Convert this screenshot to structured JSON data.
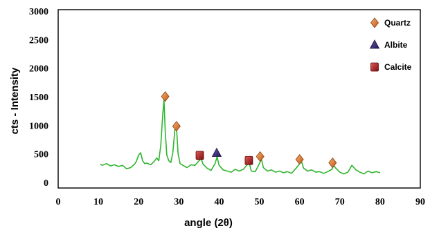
{
  "chart_data": {
    "type": "line",
    "xlabel": "angle (2θ)",
    "ylabel": "cts - Intensity",
    "xlim": [
      0,
      90
    ],
    "ylim": [
      0,
      3000
    ],
    "x_ticks": [
      "0",
      "10",
      "20",
      "30",
      "40",
      "50",
      "60",
      "70",
      "80",
      "90"
    ],
    "y_ticks": [
      "0",
      "500",
      "1000",
      "1500",
      "2000",
      "2500",
      "3000"
    ],
    "line_color": "#2db52d",
    "series": [
      {
        "x": [
          10.5,
          11,
          12,
          13,
          14,
          15,
          16,
          17,
          18,
          19,
          19.5,
          20,
          20.5,
          21,
          21.5,
          22,
          23,
          24,
          24.5,
          25,
          25.5,
          26,
          26.3,
          26.6,
          27,
          27.5,
          28,
          28.5,
          29,
          29.4,
          29.8,
          30.3,
          31,
          32,
          33,
          34,
          35,
          35.5,
          36,
          37,
          38,
          39,
          39.5,
          40,
          41,
          42,
          43,
          44,
          45,
          46,
          47,
          47.5,
          48,
          49,
          50,
          50.5,
          51,
          52,
          53,
          54,
          55,
          56,
          57,
          58,
          59,
          60,
          60.5,
          61,
          62,
          63,
          64,
          65,
          66,
          67,
          68,
          68.5,
          69,
          70,
          71,
          72,
          73,
          74,
          75,
          76,
          77,
          78,
          79,
          80
        ],
        "y": [
          320,
          300,
          330,
          290,
          310,
          280,
          300,
          240,
          260,
          320,
          380,
          480,
          520,
          380,
          330,
          340,
          310,
          380,
          430,
          380,
          650,
          1200,
          1450,
          900,
          480,
          380,
          350,
          520,
          920,
          980,
          500,
          330,
          300,
          260,
          310,
          300,
          380,
          420,
          320,
          250,
          210,
          330,
          450,
          300,
          220,
          200,
          180,
          230,
          200,
          230,
          310,
          340,
          200,
          190,
          330,
          410,
          260,
          200,
          220,
          180,
          200,
          170,
          190,
          160,
          240,
          330,
          360,
          250,
          200,
          220,
          180,
          190,
          160,
          190,
          230,
          300,
          250,
          180,
          150,
          180,
          300,
          220,
          180,
          150,
          200,
          170,
          190,
          170
        ]
      }
    ],
    "markers": [
      {
        "mineral": "Quartz",
        "x": 26.6,
        "y": 1480
      },
      {
        "mineral": "Quartz",
        "x": 29.4,
        "y": 960
      },
      {
        "mineral": "Calcite",
        "x": 35.2,
        "y": 450
      },
      {
        "mineral": "Albite",
        "x": 39.4,
        "y": 490
      },
      {
        "mineral": "Calcite",
        "x": 47.4,
        "y": 360
      },
      {
        "mineral": "Quartz",
        "x": 50.2,
        "y": 430
      },
      {
        "mineral": "Quartz",
        "x": 60.0,
        "y": 380
      },
      {
        "mineral": "Quartz",
        "x": 68.2,
        "y": 320
      }
    ],
    "legend": {
      "placement": "top-right",
      "entries": [
        {
          "label": "Quartz",
          "marker": "diamond",
          "color": "#e07b28"
        },
        {
          "label": "Albite",
          "marker": "triangle",
          "color": "#3b2c7a"
        },
        {
          "label": "Calcite",
          "marker": "square",
          "color": "#b01c1c"
        }
      ]
    }
  }
}
